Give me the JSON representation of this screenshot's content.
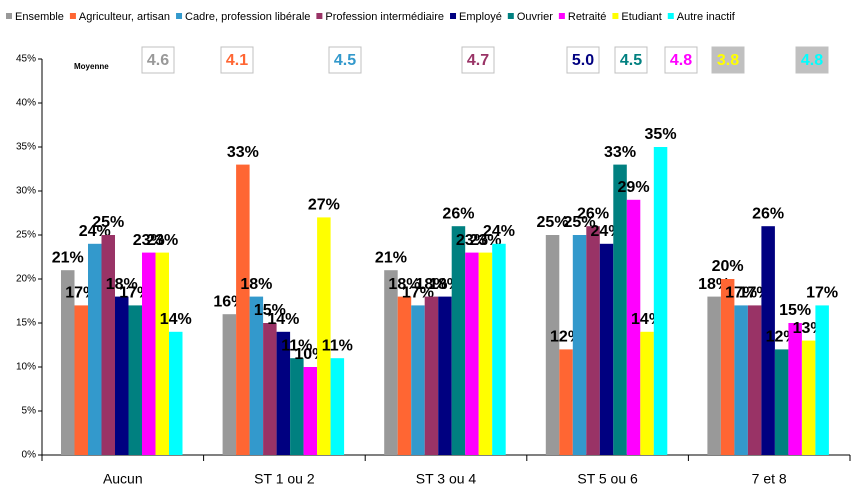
{
  "chart_data": {
    "type": "bar",
    "categories": [
      "Aucun",
      "ST 1 ou 2",
      "ST 3 ou 4",
      "ST 5 ou 6",
      "7 et 8"
    ],
    "series": [
      {
        "name": "Ensemble",
        "color": "#999999",
        "values": [
          21,
          16,
          21,
          25,
          18
        ],
        "value_labels": [
          "21%",
          "16%",
          "21%",
          "25%",
          "18%"
        ]
      },
      {
        "name": "Agriculteur, artisan",
        "color": "#ff6633",
        "values": [
          17,
          33,
          18,
          12,
          20
        ],
        "value_labels": [
          "17%",
          "33%",
          "18%",
          "12%",
          "20%"
        ]
      },
      {
        "name": "Cadre, profession libérale",
        "color": "#3399cc",
        "values": [
          24,
          18,
          17,
          25,
          17
        ],
        "value_labels": [
          "24%",
          "18%",
          "17%",
          "25%",
          "17%"
        ]
      },
      {
        "name": "Profession intermédiaire",
        "color": "#993366",
        "values": [
          25,
          15,
          18,
          26,
          17
        ],
        "value_labels": [
          "25%",
          "15%",
          "18%",
          "26%",
          "17%"
        ]
      },
      {
        "name": "Employé",
        "color": "#000080",
        "values": [
          18,
          14,
          18,
          24,
          26
        ],
        "value_labels": [
          "18%",
          "14%",
          "18%",
          "24%",
          "26%"
        ]
      },
      {
        "name": "Ouvrier",
        "color": "#008080",
        "values": [
          17,
          11,
          26,
          33,
          12
        ],
        "value_labels": [
          "17%",
          "11%",
          "26%",
          "33%",
          "12%"
        ]
      },
      {
        "name": "Retraité",
        "color": "#ff00ff",
        "values": [
          23,
          10,
          23,
          29,
          15
        ],
        "value_labels": [
          "23%",
          "10%",
          "23%",
          "29%",
          "15%"
        ]
      },
      {
        "name": "Etudiant",
        "color": "#ffff00",
        "values": [
          23,
          27,
          23,
          14,
          13
        ],
        "value_labels": [
          "23%",
          "27%",
          "23%",
          "14%",
          "13%"
        ]
      },
      {
        "name": "Autre inactif",
        "color": "#00ffff",
        "values": [
          14,
          11,
          24,
          35,
          17
        ],
        "value_labels": [
          "14%",
          "11%",
          "24%",
          "35%",
          "17%"
        ]
      }
    ],
    "ylim": [
      0,
      45
    ],
    "yticks": [
      {
        "value": 0,
        "label": "0%"
      },
      {
        "value": 5,
        "label": "5%"
      },
      {
        "value": 10,
        "label": "10%"
      },
      {
        "value": 15,
        "label": "15%"
      },
      {
        "value": 20,
        "label": "20%"
      },
      {
        "value": 25,
        "label": "25%"
      },
      {
        "value": 30,
        "label": "30%"
      },
      {
        "value": 35,
        "label": "35%"
      },
      {
        "value": 40,
        "label": "40%"
      },
      {
        "value": 45,
        "label": "45%"
      }
    ],
    "legend": "top",
    "grid": false,
    "moyenne": {
      "label": "Moyenne",
      "values": [
        "4.6",
        "4.1",
        "4.5",
        "4.7",
        "5.0",
        "4.5",
        "4.8",
        "3.8",
        "4.8"
      ]
    }
  }
}
